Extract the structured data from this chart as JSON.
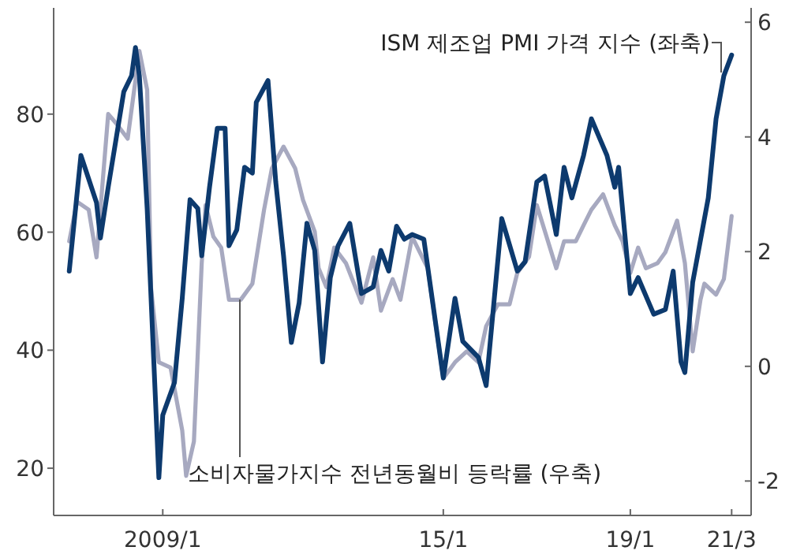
{
  "chart_data": {
    "type": "line",
    "legend": false,
    "grid": false,
    "marker": "none",
    "line_style": "solid",
    "xlim": [
      "2006-09",
      "2021-08"
    ],
    "xticks": [
      {
        "value": "2009-01",
        "label": "2009/1"
      },
      {
        "value": "2015-01",
        "label": "15/1"
      },
      {
        "value": "2019-01",
        "label": "19/1"
      },
      {
        "value": "2021-03",
        "label": "21/3"
      }
    ],
    "ylim": [
      12,
      98
    ],
    "yticks": [
      20,
      40,
      60,
      80
    ],
    "y2lim": [
      -2.6,
      6.25
    ],
    "y2ticks": [
      -2,
      0,
      2,
      4,
      6
    ],
    "series": [
      {
        "name": "ISM 제조업 PMI 가격 지수 (좌축)",
        "color": "#0d3a6e",
        "x": [
          "2007-01",
          "2007-04",
          "2007-08",
          "2007-09",
          "2007-11",
          "2008-01",
          "2008-03",
          "2008-05",
          "2008-06",
          "2008-07",
          "2008-09",
          "2008-12",
          "2009-01",
          "2009-04",
          "2009-06",
          "2009-08",
          "2009-10",
          "2009-11",
          "2010-01",
          "2010-03",
          "2010-05",
          "2010-06",
          "2010-08",
          "2010-10",
          "2010-12",
          "2011-01",
          "2011-04",
          "2011-06",
          "2011-08",
          "2011-10",
          "2011-12",
          "2012-02",
          "2012-04",
          "2012-06",
          "2012-08",
          "2012-10",
          "2013-01",
          "2013-04",
          "2013-07",
          "2013-09",
          "2013-11",
          "2014-01",
          "2014-03",
          "2014-05",
          "2014-08",
          "2015-01",
          "2015-04",
          "2015-06",
          "2015-10",
          "2015-12",
          "2016-04",
          "2016-08",
          "2016-10",
          "2017-01",
          "2017-03",
          "2017-06",
          "2017-08",
          "2017-10",
          "2018-01",
          "2018-03",
          "2018-07",
          "2018-09",
          "2018-10",
          "2019-01",
          "2019-03",
          "2019-07",
          "2019-10",
          "2019-12",
          "2020-02",
          "2020-03",
          "2020-05",
          "2020-09",
          "2020-11",
          "2021-01",
          "2021-03"
        ],
        "values": [
          53.4,
          73,
          65,
          59,
          67.6,
          75.7,
          83.8,
          86.5,
          91.3,
          86.5,
          64,
          18.4,
          29,
          34.5,
          48.8,
          65.5,
          64,
          56,
          67.6,
          77.6,
          77.6,
          57.7,
          60.4,
          71,
          70,
          82,
          85.7,
          68.5,
          56,
          41.3,
          48,
          61.5,
          56.9,
          38,
          52.3,
          57.7,
          61.5,
          49.6,
          50.7,
          56.9,
          53.4,
          61,
          58.8,
          59.6,
          58.8,
          35.3,
          48.8,
          41.5,
          38.8,
          34,
          62.3,
          53.4,
          55,
          68.5,
          69.5,
          59.6,
          71,
          65.8,
          73,
          79.2,
          73,
          67.6,
          71,
          49.6,
          52.3,
          46.1,
          46.9,
          53.4,
          38,
          36.2,
          51.5,
          65.8,
          79.2,
          86.5,
          90
        ]
      },
      {
        "name": "소비자물가지수 전년동월비 등락률 (우축)",
        "color": "#a7a9c0",
        "axis": "y2",
        "x": [
          "2007-01",
          "2007-03",
          "2007-06",
          "2007-08",
          "2007-11",
          "2008-01",
          "2008-04",
          "2008-07",
          "2008-09",
          "2008-10",
          "2008-12",
          "2009-03",
          "2009-06",
          "2009-07",
          "2009-09",
          "2009-11",
          "2009-12",
          "2010-02",
          "2010-04",
          "2010-06",
          "2010-09",
          "2010-12",
          "2011-03",
          "2011-05",
          "2011-08",
          "2011-11",
          "2012-01",
          "2012-04",
          "2012-05",
          "2012-07",
          "2012-09",
          "2012-12",
          "2013-04",
          "2013-07",
          "2013-09",
          "2013-12",
          "2014-02",
          "2014-05",
          "2014-09",
          "2015-01",
          "2015-04",
          "2015-07",
          "2015-10",
          "2015-12",
          "2016-03",
          "2016-06",
          "2016-08",
          "2016-11",
          "2017-01",
          "2017-06",
          "2017-08",
          "2017-11",
          "2018-01",
          "2018-03",
          "2018-06",
          "2018-09",
          "2018-11",
          "2019-01",
          "2019-03",
          "2019-05",
          "2019-08",
          "2019-10",
          "2020-01",
          "2020-03",
          "2020-05",
          "2020-07",
          "2020-08",
          "2020-11",
          "2021-01",
          "2021-03"
        ],
        "values": [
          2.18,
          2.87,
          2.73,
          1.9,
          4.4,
          4.24,
          3.97,
          5.5,
          4.82,
          1.36,
          0.07,
          -0.02,
          -1.12,
          -1.91,
          -1.31,
          1.8,
          2.81,
          2.26,
          2.07,
          1.16,
          1.16,
          1.44,
          2.73,
          3.45,
          3.83,
          3.45,
          2.9,
          2.35,
          1.71,
          1.38,
          2.07,
          1.8,
          1.11,
          1.9,
          0.97,
          1.52,
          1.16,
          2.26,
          1.71,
          -0.21,
          0.07,
          0.26,
          0.07,
          0.7,
          1.08,
          1.08,
          1.63,
          1.91,
          2.81,
          1.71,
          2.18,
          2.18,
          2.46,
          2.73,
          3.0,
          2.46,
          2.18,
          1.63,
          2.07,
          1.71,
          1.8,
          1.99,
          2.54,
          1.8,
          0.26,
          1.16,
          1.44,
          1.25,
          1.52,
          2.62
        ]
      }
    ]
  }
}
